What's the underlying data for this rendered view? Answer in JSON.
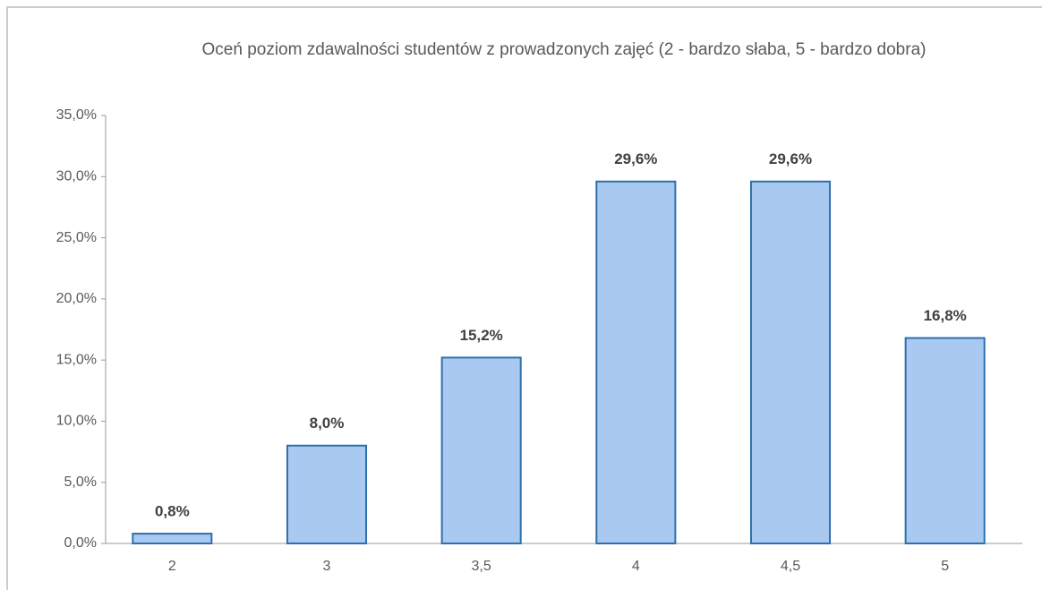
{
  "chart_data": {
    "type": "bar",
    "title": "Oceń poziom zdawalności studentów z prowadzonych zajęć (2 - bardzo słaba, 5 - bardzo dobra)",
    "categories": [
      "2",
      "3",
      "3,5",
      "4",
      "4,5",
      "5"
    ],
    "values": [
      0.8,
      8.0,
      15.2,
      29.6,
      29.6,
      16.8
    ],
    "value_labels": [
      "0,8%",
      "8,0%",
      "15,2%",
      "29,6%",
      "29,6%",
      "16,8%"
    ],
    "color": "#a9c9f1",
    "edge_color": "#2e6fae",
    "ylim": [
      0,
      35
    ],
    "yticks": [
      {
        "value": 0,
        "label": "0,0%"
      },
      {
        "value": 5,
        "label": "5,0%"
      },
      {
        "value": 10,
        "label": "10,0%"
      },
      {
        "value": 15,
        "label": "15,0%"
      },
      {
        "value": 20,
        "label": "20,0%"
      },
      {
        "value": 25,
        "label": "25,0%"
      },
      {
        "value": 30,
        "label": "30,0%"
      },
      {
        "value": 35,
        "label": "35,0%"
      }
    ],
    "grid": false
  }
}
